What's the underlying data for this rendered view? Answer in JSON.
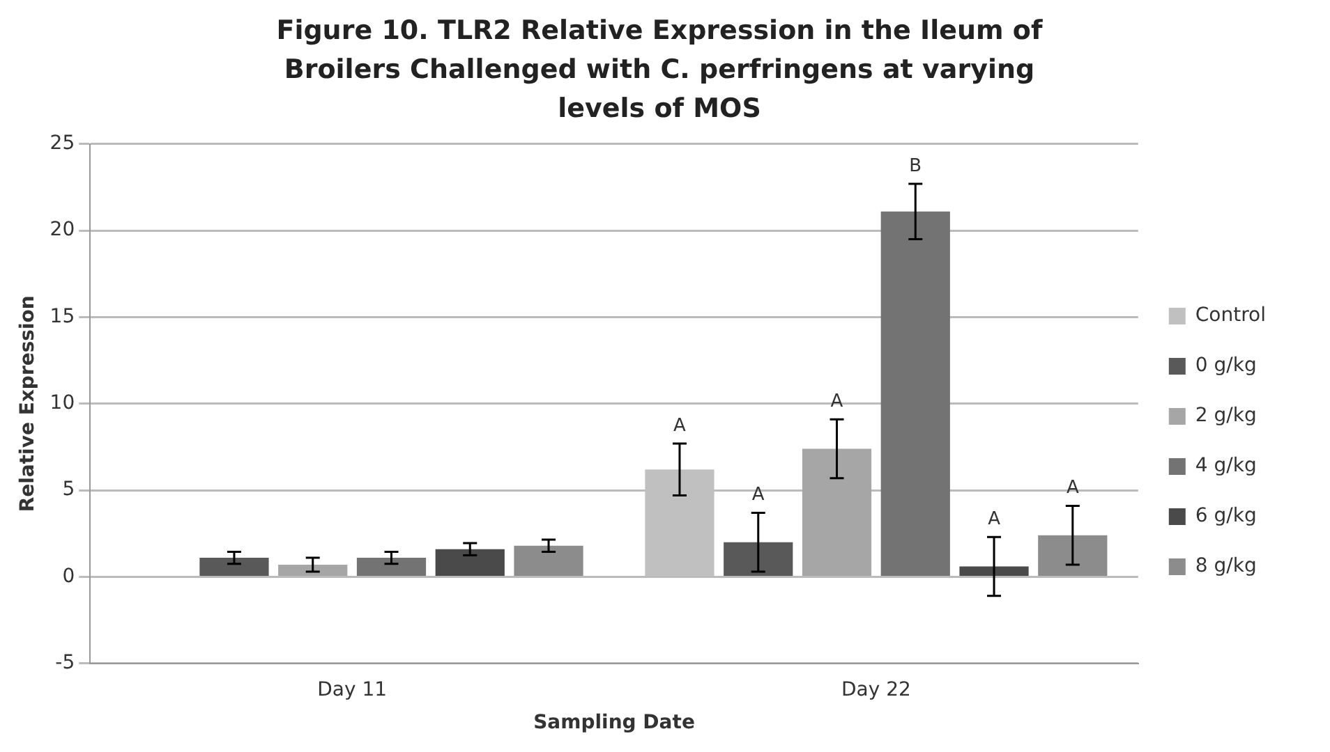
{
  "chart_data": {
    "type": "bar",
    "title": "Figure 10. TLR2  Relative Expression in the Ileum of Broilers Challenged with C. perfringens at varying levels of MOS",
    "xlabel": "Sampling Date",
    "ylabel": "Relative Expression",
    "categories": [
      "Day 11",
      "Day 22"
    ],
    "series": [
      {
        "name": "Control",
        "color": "#c0c0c0",
        "values": [
          null,
          6.2
        ],
        "errors": [
          null,
          1.5
        ],
        "value_labels": [
          null,
          "A"
        ]
      },
      {
        "name": "0 g/kg",
        "color": "#595959",
        "values": [
          1.1,
          2.0
        ],
        "errors": [
          0.35,
          1.7
        ],
        "value_labels": [
          null,
          "A"
        ]
      },
      {
        "name": "2 g/kg",
        "color": "#a6a6a6",
        "values": [
          0.7,
          7.4
        ],
        "errors": [
          0.4,
          1.7
        ],
        "value_labels": [
          null,
          "A"
        ]
      },
      {
        "name": "4 g/kg",
        "color": "#737373",
        "values": [
          1.1,
          21.1
        ],
        "errors": [
          0.35,
          1.6
        ],
        "value_labels": [
          null,
          "B"
        ]
      },
      {
        "name": "6 g/kg",
        "color": "#4a4a4a",
        "values": [
          1.6,
          0.6
        ],
        "errors": [
          0.35,
          1.7
        ],
        "value_labels": [
          null,
          "A"
        ]
      },
      {
        "name": "8 g/kg",
        "color": "#8c8c8c",
        "values": [
          1.8,
          2.4
        ],
        "errors": [
          0.35,
          1.7
        ],
        "value_labels": [
          null,
          "A"
        ]
      }
    ],
    "ylim": [
      -5,
      25
    ],
    "yticks": [
      -5,
      0,
      5,
      10,
      15,
      20,
      25
    ],
    "grid": "y",
    "legend": "right"
  }
}
